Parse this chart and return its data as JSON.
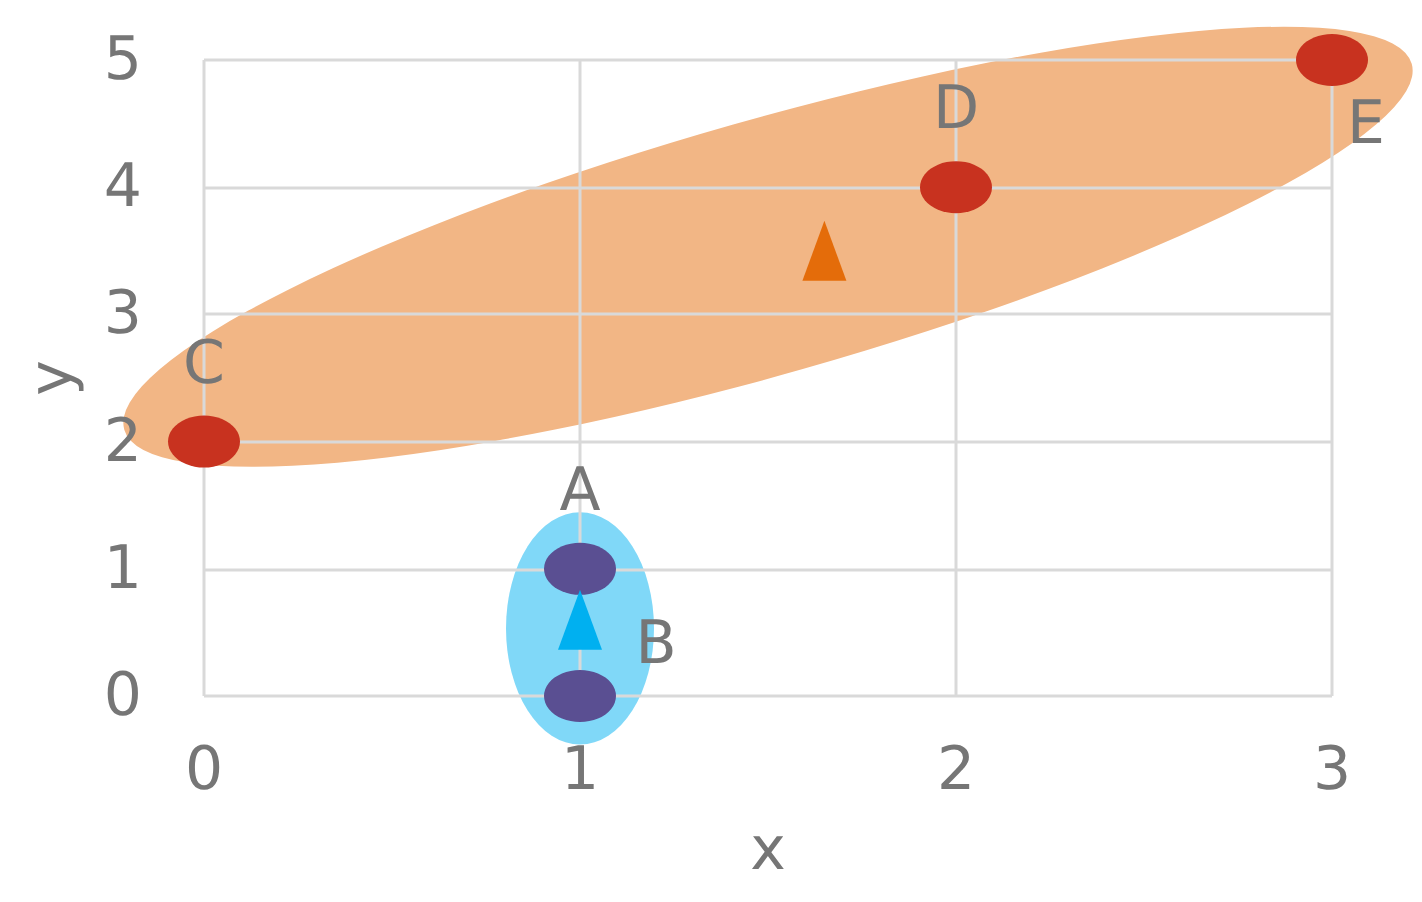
{
  "chart_data": {
    "type": "scatter",
    "xlabel": "x",
    "ylabel": "y",
    "series": [
      {
        "x": [
          1,
          1
        ],
        "values": [
          1,
          0
        ],
        "color": "#5a4f92"
      },
      {
        "x": [
          0,
          2,
          3
        ],
        "values": [
          2,
          4,
          5
        ],
        "color": "#c8321f"
      },
      {
        "x": [
          1
        ],
        "values": [
          0.6
        ],
        "color": "#00b0f0",
        "marker": "triangle"
      },
      {
        "x": [
          1.65
        ],
        "values": [
          3.5
        ],
        "color": "#e46c0a",
        "marker": "triangle"
      }
    ],
    "annotations": [
      {
        "text": "A",
        "x": 1,
        "y": 1
      },
      {
        "text": "B",
        "x": 1,
        "y": 0
      },
      {
        "text": "C",
        "x": 0,
        "y": 2
      },
      {
        "text": "D",
        "x": 2,
        "y": 4
      },
      {
        "text": "E",
        "x": 3,
        "y": 5
      }
    ],
    "marker": "circle",
    "xlim": [
      0,
      3
    ],
    "ylim": [
      0,
      5
    ],
    "xticks": [
      0,
      1,
      2,
      3
    ],
    "yticks": [
      0,
      1,
      2,
      3,
      4,
      5
    ],
    "grid": true
  }
}
